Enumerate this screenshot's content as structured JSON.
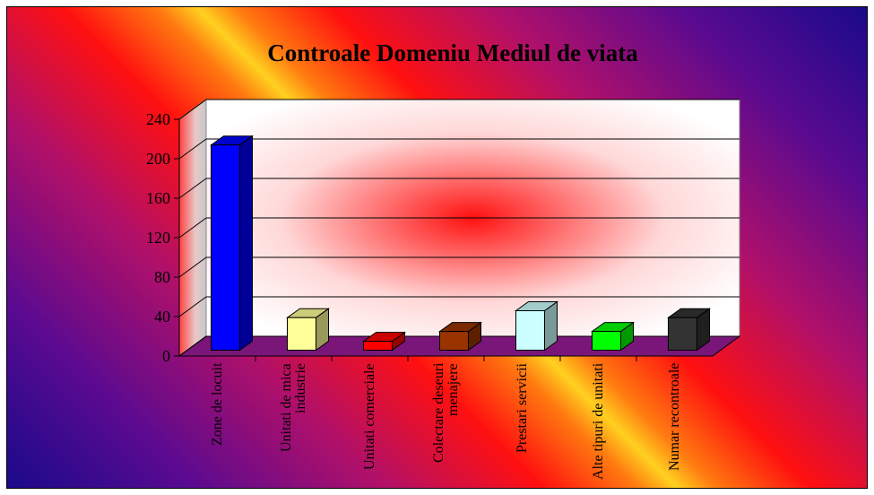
{
  "chart_data": {
    "type": "bar3d",
    "title": "Controale Domeniu Mediul de viata",
    "categories": [
      "Zone de locuit",
      "Unitati de mica industrie",
      "Unitati comerciale",
      "Colectare deseuri menajere",
      "Prestari servicii",
      "Alte tipuri de unitati",
      "Numar recontroale"
    ],
    "values": [
      208,
      33,
      9,
      19,
      40,
      19,
      33
    ],
    "colors": [
      "#0000ff",
      "#ffff99",
      "#ff0000",
      "#993300",
      "#ccffff",
      "#00ff00",
      "#333333"
    ],
    "ylim": [
      0,
      240
    ],
    "yticks": [
      0,
      40,
      80,
      120,
      160,
      200,
      240
    ],
    "grid": true
  }
}
